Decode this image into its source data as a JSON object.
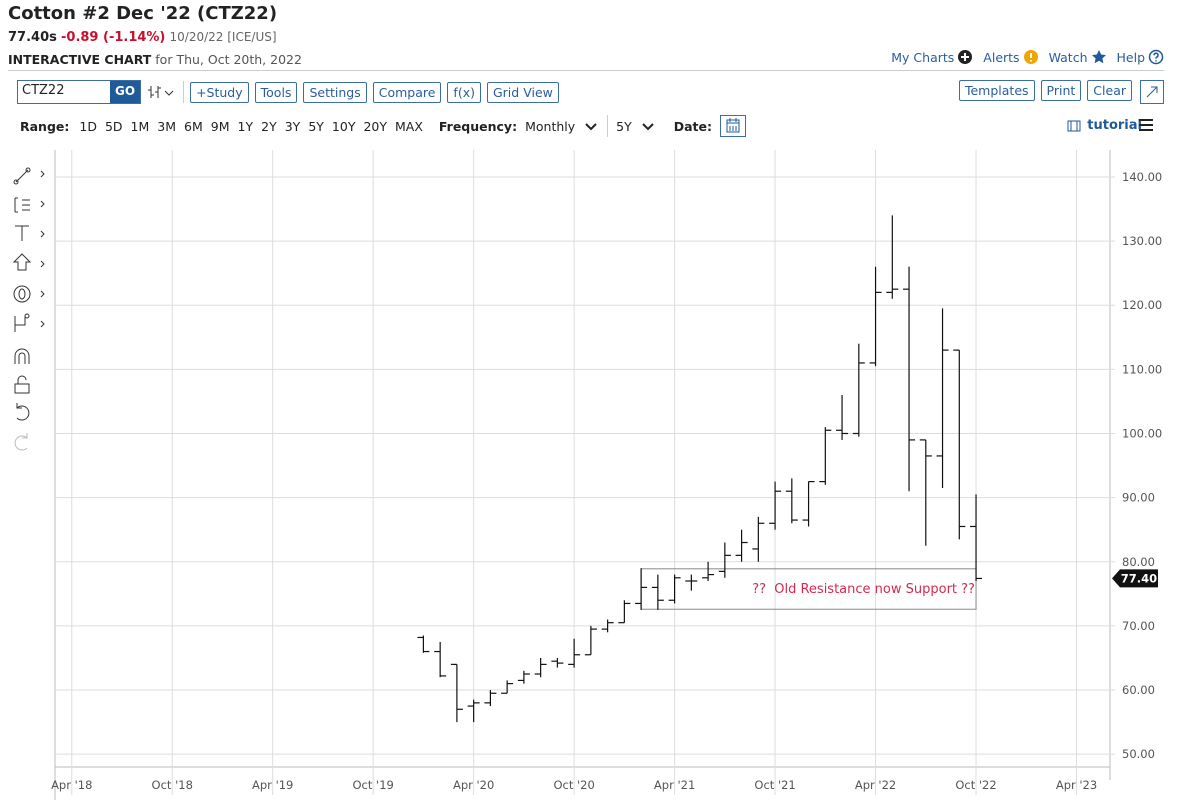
{
  "header": {
    "title": "Cotton #2 Dec '22 (CTZ22)",
    "last": "77.40s",
    "change": "-0.89 (-1.14%)",
    "date_exchange": "10/20/22 [ICE/US]",
    "subtitle": "INTERACTIVE CHART",
    "subtitle_date": "for Thu, Oct 20th, 2022",
    "links": [
      "My Charts",
      "Alerts",
      "Watch",
      "Help"
    ]
  },
  "toolbar": {
    "symbol": "CTZ22",
    "go": "GO",
    "buttons": [
      "+Study",
      "Tools",
      "Settings",
      "Compare",
      "f(x)",
      "Grid View"
    ],
    "right_buttons": [
      "Templates",
      "Print",
      "Clear"
    ]
  },
  "range_bar": {
    "range_label": "Range:",
    "ranges": [
      "1D",
      "5D",
      "1M",
      "3M",
      "6M",
      "9M",
      "1Y",
      "2Y",
      "3Y",
      "5Y",
      "10Y",
      "20Y",
      "MAX"
    ],
    "frequency_label": "Frequency:",
    "frequency": "Monthly",
    "period": "5Y",
    "date_label": "Date:",
    "tutorial": "tutorial"
  },
  "chart_data": {
    "type": "ohlc",
    "x": [
      "2020-01",
      "2020-02",
      "2020-03",
      "2020-04",
      "2020-05",
      "2020-06",
      "2020-07",
      "2020-08",
      "2020-09",
      "2020-10",
      "2020-11",
      "2020-12",
      "2021-01",
      "2021-02",
      "2021-03",
      "2021-04",
      "2021-05",
      "2021-06",
      "2021-07",
      "2021-08",
      "2021-09",
      "2021-10",
      "2021-11",
      "2021-12",
      "2022-01",
      "2022-02",
      "2022-03",
      "2022-04",
      "2022-05",
      "2022-06",
      "2022-07",
      "2022-08",
      "2022-09",
      "2022-10"
    ],
    "open": [
      68.2,
      66,
      64,
      57.5,
      58,
      59.5,
      61.5,
      62.5,
      64.5,
      64,
      65.5,
      69.5,
      70.5,
      73.5,
      76,
      74,
      77,
      77.5,
      78.5,
      81,
      82,
      86,
      91,
      86.5,
      92.5,
      100.5,
      100,
      111,
      122,
      122.5,
      99,
      96.5,
      113,
      85.5
    ],
    "high": [
      68.5,
      67.5,
      64,
      58.5,
      60,
      61.5,
      63,
      65,
      65,
      68,
      70,
      71,
      74,
      79,
      78,
      78,
      78,
      80,
      83,
      85,
      87,
      92.5,
      93,
      92.5,
      101,
      106,
      114,
      126,
      134,
      126,
      99,
      119.5,
      113,
      90.5
    ],
    "low": [
      65.8,
      62,
      55,
      55,
      57.5,
      59.5,
      61,
      62,
      63.5,
      63.5,
      65.5,
      69,
      70.5,
      72.5,
      72.5,
      73.5,
      75.5,
      77,
      77.5,
      80,
      80,
      85,
      86,
      85.5,
      92,
      99,
      99.5,
      110.5,
      121,
      91,
      82.5,
      91.5,
      83.5,
      77
    ],
    "close": [
      66,
      62.2,
      57,
      58,
      59.5,
      61,
      62.5,
      64,
      64.2,
      65.5,
      69.5,
      70.5,
      73.5,
      76,
      74,
      77.5,
      77,
      78,
      81,
      83,
      86,
      91,
      86.5,
      92.5,
      100.5,
      100,
      111,
      122,
      122.5,
      99,
      96.5,
      113,
      85.5,
      77.4
    ],
    "color": "#111111",
    "last_price_label": "77.40",
    "xlim": [
      "2018-03",
      "2023-06"
    ],
    "xticks": [
      {
        "value": "2018-04",
        "label": "Apr '18"
      },
      {
        "value": "2018-10",
        "label": "Oct '18"
      },
      {
        "value": "2019-04",
        "label": "Apr '19"
      },
      {
        "value": "2019-10",
        "label": "Oct '19"
      },
      {
        "value": "2020-04",
        "label": "Apr '20"
      },
      {
        "value": "2020-10",
        "label": "Oct '20"
      },
      {
        "value": "2021-04",
        "label": "Apr '21"
      },
      {
        "value": "2021-10",
        "label": "Oct '21"
      },
      {
        "value": "2022-04",
        "label": "Apr '22"
      },
      {
        "value": "2022-10",
        "label": "Oct '22"
      },
      {
        "value": "2023-04",
        "label": "Apr '23"
      }
    ],
    "ylim": [
      48,
      144.2
    ],
    "yticks": [
      {
        "value": 50,
        "label": "50.00"
      },
      {
        "value": 60,
        "label": "60.00"
      },
      {
        "value": 70,
        "label": "70.00"
      },
      {
        "value": 80,
        "label": "80.00"
      },
      {
        "value": 90,
        "label": "90.00"
      },
      {
        "value": 100,
        "label": "100.00"
      },
      {
        "value": 110,
        "label": "110.00"
      },
      {
        "value": 120,
        "label": "120.00"
      },
      {
        "value": 130,
        "label": "130.00"
      },
      {
        "value": 140,
        "label": "140.00"
      }
    ],
    "grid": true,
    "annotation": {
      "text": "??  Old Resistance now Support ??",
      "x": [
        "2021-02",
        "2022-10"
      ],
      "y": [
        72.6,
        78.9
      ],
      "color": "#d42a4f"
    }
  }
}
